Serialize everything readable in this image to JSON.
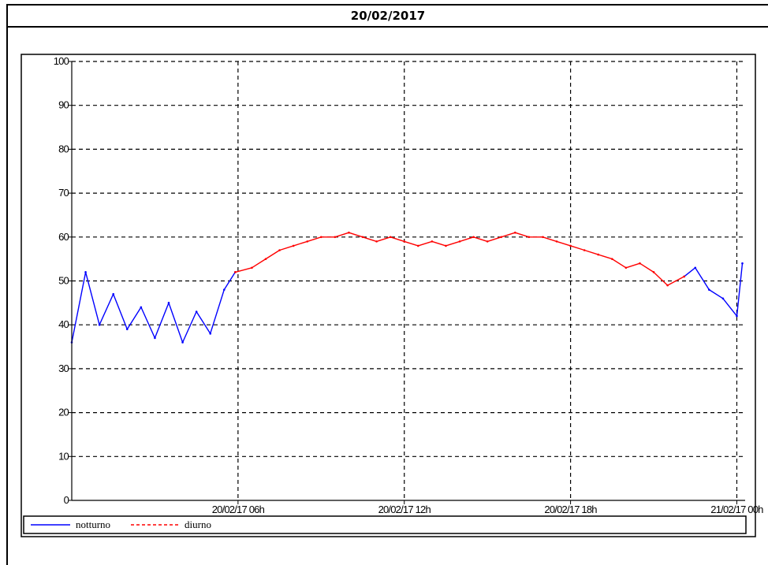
{
  "header": {
    "date": "20/02/2017"
  },
  "colors": {
    "series_blue": "#0000ff",
    "series_red": "#ff0000",
    "grid": "#000000"
  },
  "chart_data": {
    "type": "line",
    "x_unit": "hours from 20/02/17 00h",
    "xlim": [
      0.0,
      24.3
    ],
    "ylim": [
      0,
      100
    ],
    "yticks": [
      0,
      10,
      20,
      30,
      40,
      50,
      60,
      70,
      80,
      90,
      100
    ],
    "xticks": [
      {
        "x": 6,
        "label": "20/02/17 06h"
      },
      {
        "x": 12,
        "label": "20/02/17 12h"
      },
      {
        "x": 18,
        "label": "20/02/17 18h"
      },
      {
        "x": 24,
        "label": "21/02/17 00h"
      }
    ],
    "grid": true,
    "legend_position": "bottom",
    "series": [
      {
        "name": "notturno",
        "color": "#0000ff",
        "segments": [
          {
            "x": [
              0.0,
              0.5,
              1.0,
              1.5,
              2.0,
              2.5,
              3.0,
              3.5,
              4.0,
              4.5,
              5.0,
              5.5,
              5.9
            ],
            "y": [
              36,
              52,
              40,
              47,
              39,
              44,
              37,
              45,
              36,
              43,
              38,
              48,
              52
            ]
          },
          {
            "x": [
              22.1,
              22.5,
              23.0,
              23.5,
              24.0,
              24.2
            ],
            "y": [
              51,
              53,
              48,
              46,
              42,
              54
            ]
          }
        ]
      },
      {
        "name": "diurno",
        "color": "#ff0000",
        "segments": [
          {
            "x": [
              5.9,
              6.5,
              7.0,
              7.5,
              8.0,
              8.5,
              9.0,
              9.5,
              10.0,
              10.5,
              11.0,
              11.5,
              12.0,
              12.5,
              13.0,
              13.5,
              14.0,
              14.5,
              15.0,
              15.5,
              16.0,
              16.5,
              17.0,
              17.5,
              18.0,
              18.5,
              19.0,
              19.5,
              20.0,
              20.5,
              21.0,
              21.5,
              22.1
            ],
            "y": [
              52,
              53,
              55,
              57,
              58,
              59,
              60,
              60,
              61,
              60,
              59,
              60,
              59,
              58,
              59,
              58,
              59,
              60,
              59,
              60,
              61,
              60,
              60,
              59,
              58,
              57,
              56,
              55,
              53,
              54,
              52,
              49,
              51
            ]
          }
        ]
      }
    ]
  }
}
